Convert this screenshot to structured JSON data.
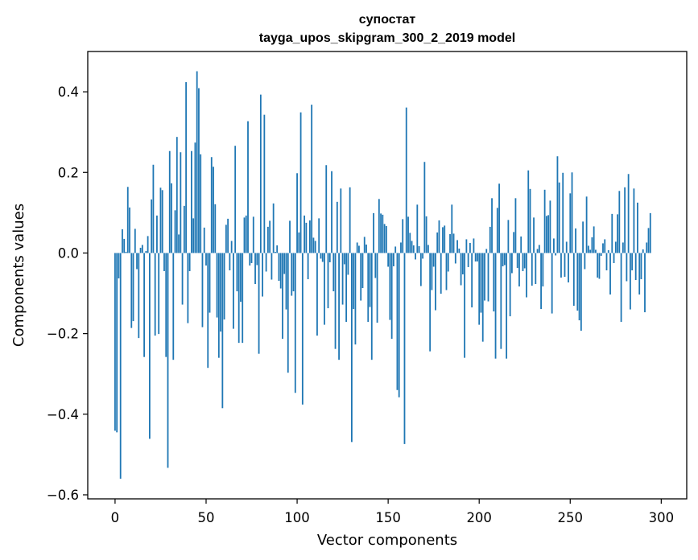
{
  "chart_data": {
    "type": "bar",
    "title": "супостат",
    "subtitle": "tayga_upos_skipgram_300_2_2019 model",
    "xlabel": "Vector components",
    "ylabel": "Components values",
    "xlim": [
      -15,
      314
    ],
    "ylim": [
      -0.61,
      0.5
    ],
    "xticks": [
      0,
      50,
      100,
      150,
      200,
      250,
      300
    ],
    "xtick_labels": [
      "0",
      "50",
      "100",
      "150",
      "200",
      "250",
      "300"
    ],
    "yticks": [
      -0.6,
      -0.4,
      -0.2,
      0.0,
      0.2,
      0.4
    ],
    "ytick_labels": [
      "−0.6",
      "−0.4",
      "−0.2",
      "0.0",
      "0.2",
      "0.4"
    ],
    "bar_color": "#1f77b4",
    "grid": false,
    "x": "0..299",
    "values": [
      -0.441,
      -0.445,
      -0.063,
      -0.56,
      0.059,
      0.035,
      0.003,
      0.164,
      0.113,
      -0.186,
      -0.169,
      0.06,
      -0.04,
      -0.211,
      0.013,
      0.02,
      -0.258,
      0.005,
      0.042,
      -0.461,
      0.133,
      0.219,
      -0.205,
      0.093,
      -0.201,
      0.162,
      0.156,
      -0.045,
      -0.258,
      -0.533,
      0.253,
      0.173,
      -0.265,
      0.106,
      0.288,
      0.046,
      0.25,
      -0.128,
      0.117,
      0.424,
      -0.174,
      -0.045,
      0.253,
      0.086,
      0.274,
      0.451,
      0.409,
      0.245,
      -0.184,
      0.063,
      -0.031,
      -0.285,
      -0.148,
      0.238,
      0.214,
      0.121,
      -0.16,
      -0.26,
      -0.195,
      -0.385,
      -0.165,
      0.07,
      0.085,
      -0.043,
      0.03,
      -0.188,
      0.266,
      -0.095,
      -0.223,
      -0.121,
      -0.223,
      0.088,
      0.093,
      0.327,
      -0.031,
      -0.025,
      0.09,
      -0.077,
      -0.03,
      -0.25,
      0.393,
      -0.108,
      0.343,
      -0.046,
      0.065,
      0.08,
      -0.066,
      0.123,
      0.003,
      0.019,
      -0.069,
      -0.088,
      -0.213,
      -0.052,
      -0.14,
      -0.297,
      0.08,
      -0.106,
      -0.095,
      -0.347,
      0.198,
      0.051,
      0.349,
      -0.376,
      0.093,
      0.075,
      -0.065,
      0.081,
      0.368,
      0.038,
      0.03,
      -0.205,
      0.086,
      -0.014,
      -0.022,
      -0.178,
      0.218,
      -0.137,
      -0.023,
      0.203,
      -0.095,
      -0.238,
      0.127,
      -0.265,
      0.16,
      -0.128,
      -0.028,
      -0.171,
      -0.054,
      0.163,
      -0.469,
      -0.139,
      -0.227,
      0.026,
      0.018,
      -0.118,
      -0.087,
      0.04,
      0.021,
      -0.171,
      -0.134,
      -0.265,
      0.099,
      -0.062,
      -0.173,
      0.134,
      0.098,
      0.095,
      0.072,
      0.067,
      -0.034,
      -0.166,
      -0.213,
      -0.033,
      0.016,
      -0.34,
      -0.358,
      0.026,
      0.084,
      -0.474,
      0.361,
      0.09,
      0.05,
      0.03,
      0.019,
      -0.016,
      0.12,
      0.017,
      -0.082,
      -0.014,
      0.226,
      0.091,
      0.02,
      -0.244,
      -0.092,
      -0.034,
      -0.142,
      0.051,
      0.081,
      -0.101,
      0.064,
      0.068,
      -0.092,
      -0.046,
      0.047,
      0.12,
      0.048,
      -0.026,
      0.032,
      0.011,
      -0.08,
      -0.053,
      -0.26,
      0.034,
      -0.035,
      0.025,
      -0.135,
      0.036,
      -0.021,
      -0.021,
      -0.178,
      -0.148,
      -0.22,
      -0.118,
      0.01,
      -0.12,
      0.065,
      0.136,
      -0.145,
      -0.262,
      0.112,
      0.172,
      -0.238,
      -0.033,
      -0.03,
      -0.262,
      0.082,
      -0.157,
      -0.05,
      0.052,
      0.136,
      -0.037,
      -0.083,
      0.041,
      -0.045,
      -0.038,
      -0.11,
      0.205,
      0.159,
      -0.081,
      0.088,
      -0.077,
      0.01,
      0.02,
      -0.139,
      -0.083,
      0.157,
      0.092,
      0.094,
      0.13,
      -0.15,
      0.036,
      -0.006,
      0.24,
      0.175,
      -0.061,
      0.199,
      -0.059,
      0.028,
      -0.073,
      0.148,
      0.2,
      -0.131,
      0.061,
      -0.143,
      -0.167,
      -0.193,
      0.078,
      -0.04,
      0.14,
      0.018,
      0.008,
      0.039,
      0.066,
      0.008,
      -0.061,
      -0.064,
      -0.007,
      0.024,
      0.034,
      -0.043,
      0.007,
      -0.103,
      0.097,
      -0.025,
      0.028,
      0.096,
      0.154,
      -0.171,
      0.026,
      0.163,
      -0.07,
      0.196,
      -0.14,
      -0.043,
      0.16,
      -0.067,
      0.125,
      -0.103,
      -0.065,
      0.009,
      -0.147,
      0.026,
      0.062,
      0.099
    ]
  }
}
